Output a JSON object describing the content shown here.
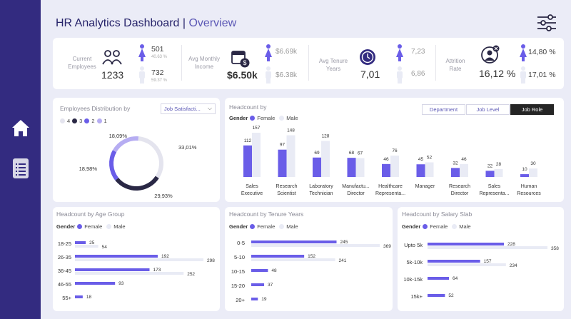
{
  "colors": {
    "sidebar": "#332b80",
    "accent": "#6a5de8",
    "male": "#e9ebf5",
    "dark": "#2a2845",
    "background": "#ebecf7"
  },
  "icons": {
    "home": "home-icon",
    "report": "document-icon",
    "settings": "sliders-icon",
    "employees": "people-icon",
    "income": "calendar-dollar-icon",
    "tenure": "clock-icon",
    "attrition": "person-x-icon",
    "female": "female-icon",
    "male": "male-icon"
  },
  "header": {
    "title": "HR Analytics Dashboard",
    "separator": "|",
    "subtitle": "Overview"
  },
  "kpis": {
    "employees": {
      "label_line1": "Current",
      "label_line2": "Employees",
      "value": "1233",
      "female_count": "501",
      "female_pct": "40.63 %",
      "male_count": "732",
      "male_pct": "59.37 %"
    },
    "income": {
      "label_line1": "Avg Monthly",
      "label_line2": "Income",
      "value": "$6.50k",
      "female_value": "$6.69k",
      "male_value": "$6.38k"
    },
    "tenure": {
      "label_line1": "Avg Tenure",
      "label_line2": "Years",
      "value": "7,01",
      "female_value": "7,23",
      "male_value": "6,86"
    },
    "attrition": {
      "label_line1": "Attrition",
      "label_line2": "Rate",
      "value": "16,12 %",
      "female_value": "14,80 %",
      "male_value": "17,01 %"
    }
  },
  "distribution": {
    "title": "Employees Distribution by",
    "dropdown": "Job Satisfacti...",
    "dropdown_chevron": "⌵",
    "legend": [
      {
        "label": "4",
        "color": "#e4e4ee"
      },
      {
        "label": "3",
        "color": "#2a2845"
      },
      {
        "label": "2",
        "color": "#6a5de8"
      },
      {
        "label": "1",
        "color": "#b6adf2"
      }
    ],
    "slices": [
      {
        "label": "33,01%",
        "value": 33.01,
        "color": "#e4e4ee"
      },
      {
        "label": "29,93%",
        "value": 29.93,
        "color": "#2a2845"
      },
      {
        "label": "18,98%",
        "value": 18.98,
        "color": "#6a5de8"
      },
      {
        "label": "18,09%",
        "value": 18.09,
        "color": "#b6adf2"
      }
    ]
  },
  "headcount": {
    "title": "Headcount by",
    "tabs": [
      {
        "label": "Department"
      },
      {
        "label": "Job Level"
      },
      {
        "label": "Job Role"
      }
    ],
    "legend_gender": "Gender",
    "legend_female": "Female",
    "legend_male": "Male",
    "roles": [
      {
        "line1": "Sales",
        "line2": "Executive",
        "female": 112,
        "male": 157
      },
      {
        "line1": "Research",
        "line2": "Scientist",
        "female": 97,
        "male": 148
      },
      {
        "line1": "Laboratory",
        "line2": "Technician",
        "female": 69,
        "male": 128
      },
      {
        "line1": "Manufactu...",
        "line2": "Director",
        "female": 68,
        "male": 67
      },
      {
        "line1": "Healthcare",
        "line2": "Representa...",
        "female": 46,
        "male": 76
      },
      {
        "line1": "Manager",
        "line2": "",
        "female": 45,
        "male": 52
      },
      {
        "line1": "Research",
        "line2": "Director",
        "female": 32,
        "male": 46
      },
      {
        "line1": "Sales",
        "line2": "Representa...",
        "female": 22,
        "male": 28
      },
      {
        "line1": "Human",
        "line2": "Resources",
        "female": 10,
        "male": 30
      }
    ]
  },
  "age_group": {
    "title": "Headcount by Age Group",
    "rows": [
      {
        "label": "18-25",
        "female": 25,
        "male": 54
      },
      {
        "label": "26-35",
        "female": 192,
        "male": 298
      },
      {
        "label": "36-45",
        "female": 173,
        "male": 252
      },
      {
        "label": "46-55",
        "female": 93,
        "male": null
      },
      {
        "label": "55+",
        "female": 18,
        "male": null
      }
    ]
  },
  "tenure_years": {
    "title": "Headcount by Tenure Years",
    "rows": [
      {
        "label": "0-5",
        "female": 245,
        "male": 369
      },
      {
        "label": "5-10",
        "female": 152,
        "male": 241
      },
      {
        "label": "10-15",
        "female": 48,
        "male": null
      },
      {
        "label": "15-20",
        "female": 37,
        "male": null
      },
      {
        "label": "20+",
        "female": 19,
        "male": null
      }
    ]
  },
  "salary_slab": {
    "title": "Headcount by Salary Slab",
    "rows": [
      {
        "label": "Upto 5k",
        "female": 228,
        "male": 358
      },
      {
        "label": "5k-10k",
        "female": 157,
        "male": 234
      },
      {
        "label": "10k-15k",
        "female": 64,
        "male": null
      },
      {
        "label": "15k+",
        "female": 52,
        "male": null
      }
    ]
  },
  "chart_data": [
    {
      "type": "pie",
      "title": "Employees Distribution by",
      "categories": [
        "4",
        "3",
        "2",
        "1"
      ],
      "values": [
        33.01,
        29.93,
        18.98,
        18.09
      ]
    },
    {
      "type": "bar",
      "title": "Headcount by",
      "xlabel": "",
      "ylabel": "",
      "categories": [
        "Sales Executive",
        "Research Scientist",
        "Laboratory Technician",
        "Manufactu... Director",
        "Healthcare Representa...",
        "Manager",
        "Research Director",
        "Sales Representa...",
        "Human Resources"
      ],
      "series": [
        {
          "name": "Female",
          "values": [
            112,
            97,
            69,
            68,
            46,
            45,
            32,
            22,
            10
          ]
        },
        {
          "name": "Male",
          "values": [
            157,
            148,
            128,
            67,
            76,
            52,
            46,
            28,
            30
          ]
        }
      ]
    },
    {
      "type": "bar",
      "title": "Headcount by Age Group",
      "categories": [
        "18-25",
        "26-35",
        "36-45",
        "46-55",
        "55+"
      ],
      "series": [
        {
          "name": "Female",
          "values": [
            25,
            192,
            173,
            93,
            18
          ]
        },
        {
          "name": "Male",
          "values": [
            54,
            298,
            252,
            null,
            null
          ]
        }
      ]
    },
    {
      "type": "bar",
      "title": "Headcount by Tenure Years",
      "categories": [
        "0-5",
        "5-10",
        "10-15",
        "15-20",
        "20+"
      ],
      "series": [
        {
          "name": "Female",
          "values": [
            245,
            152,
            48,
            37,
            19
          ]
        },
        {
          "name": "Male",
          "values": [
            369,
            241,
            null,
            null,
            null
          ]
        }
      ]
    },
    {
      "type": "bar",
      "title": "Headcount by Salary Slab",
      "categories": [
        "Upto 5k",
        "5k-10k",
        "10k-15k",
        "15k+"
      ],
      "series": [
        {
          "name": "Female",
          "values": [
            228,
            157,
            64,
            52
          ]
        },
        {
          "name": "Male",
          "values": [
            358,
            234,
            null,
            null
          ]
        }
      ]
    }
  ]
}
